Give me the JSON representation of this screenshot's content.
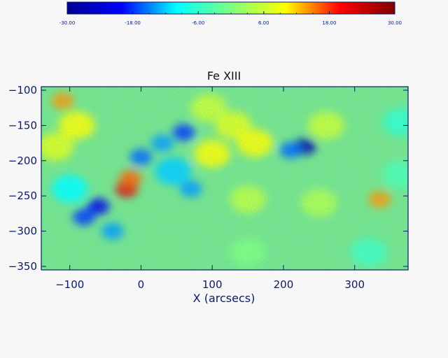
{
  "chart_data": {
    "type": "heatmap",
    "title": "Fe XIII",
    "xlabel": "X (arcsecs)",
    "ylabel": "",
    "xlim": [
      -140,
      375
    ],
    "ylim": [
      -355,
      -95
    ],
    "x_ticks": [
      -100,
      0,
      100,
      200,
      300
    ],
    "y_ticks": [
      -100,
      -150,
      -200,
      -250,
      -300,
      -350
    ],
    "colorbar": {
      "min": -30,
      "max": 30,
      "tick_labels": [
        "-30.00",
        "-18.00",
        "-6.00",
        "6.00",
        "18.00",
        "30.00"
      ],
      "tick_values": [
        -30,
        -18,
        -6,
        6,
        18,
        30
      ],
      "colormap": [
        "#00008f",
        "#0000ff",
        "#00ffff",
        "#7fff7f",
        "#ffff00",
        "#ff0000",
        "#7f0000"
      ]
    },
    "features": [
      {
        "x": -110,
        "y": -115,
        "value": 14
      },
      {
        "x": -90,
        "y": -150,
        "value": 10
      },
      {
        "x": -120,
        "y": -180,
        "value": 8
      },
      {
        "x": -20,
        "y": -240,
        "value": 22
      },
      {
        "x": -15,
        "y": -225,
        "value": 16
      },
      {
        "x": -60,
        "y": -265,
        "value": -22
      },
      {
        "x": -80,
        "y": -280,
        "value": -18
      },
      {
        "x": -40,
        "y": -300,
        "value": -14
      },
      {
        "x": -100,
        "y": -240,
        "value": -10
      },
      {
        "x": 0,
        "y": -195,
        "value": -16
      },
      {
        "x": 30,
        "y": -175,
        "value": -14
      },
      {
        "x": 60,
        "y": -160,
        "value": -18
      },
      {
        "x": 45,
        "y": -215,
        "value": -12
      },
      {
        "x": 70,
        "y": -240,
        "value": -14
      },
      {
        "x": 100,
        "y": -190,
        "value": 10
      },
      {
        "x": 130,
        "y": -150,
        "value": 8
      },
      {
        "x": 160,
        "y": -175,
        "value": 10
      },
      {
        "x": 95,
        "y": -125,
        "value": 6
      },
      {
        "x": 230,
        "y": -180,
        "value": -28
      },
      {
        "x": 210,
        "y": -185,
        "value": -16
      },
      {
        "x": 260,
        "y": -150,
        "value": 6
      },
      {
        "x": 150,
        "y": -255,
        "value": 5
      },
      {
        "x": 250,
        "y": -260,
        "value": 4
      },
      {
        "x": 335,
        "y": -255,
        "value": 14
      },
      {
        "x": 365,
        "y": -145,
        "value": -6
      },
      {
        "x": 365,
        "y": -220,
        "value": -4
      },
      {
        "x": 320,
        "y": -330,
        "value": -5
      },
      {
        "x": 150,
        "y": -330,
        "value": 0
      }
    ]
  }
}
